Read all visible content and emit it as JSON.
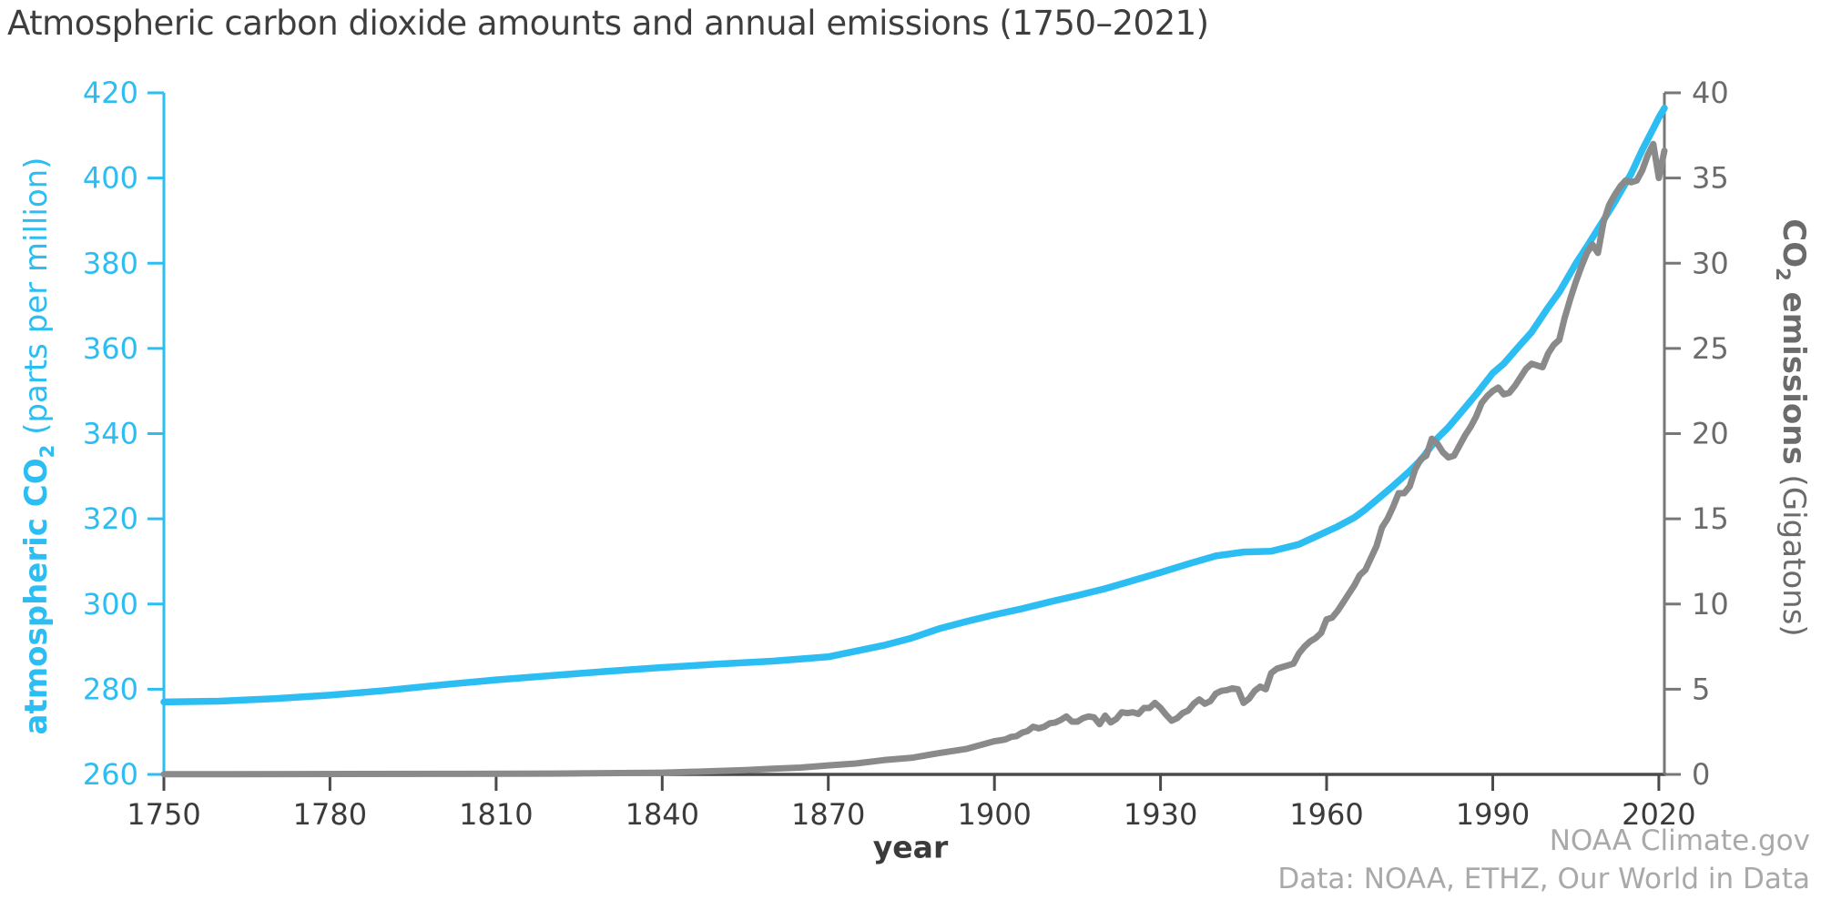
{
  "title": "Atmospheric carbon dioxide amounts and annual emissions (1750–2021)",
  "credits": {
    "line1": "NOAA Climate.gov",
    "line2": "Data: NOAA, ETHZ, Our World in Data"
  },
  "colors": {
    "co2_line": "#2cbdf2",
    "emissions_line": "#8a8a8a",
    "left_axis": "#2cbdf2",
    "left_tick_text": "#2cbdf2",
    "right_axis": "#777777",
    "right_tick_text": "#6b6b6b",
    "x_axis": "#4a4a4a",
    "x_tick_text": "#3b3b3b",
    "title_text": "#3e3e3e",
    "credits_text": "#a9a9a9"
  },
  "axes": {
    "x": {
      "label": "year",
      "ticks": [
        1750,
        1780,
        1810,
        1840,
        1870,
        1900,
        1930,
        1960,
        1990,
        2020
      ]
    },
    "y_left": {
      "label_bold": "atmospheric CO",
      "label_sub": "2",
      "label_rest": " (parts per million)",
      "ticks": [
        260,
        280,
        300,
        320,
        340,
        360,
        380,
        400,
        420
      ]
    },
    "y_right": {
      "label_bold_1": "CO",
      "label_sub": "2",
      "label_bold_2": " emissions",
      "label_rest": " (Gigatons)",
      "ticks": [
        0,
        5,
        10,
        15,
        20,
        25,
        30,
        35,
        40
      ]
    }
  },
  "chart_data": {
    "type": "line",
    "title": "Atmospheric carbon dioxide amounts and annual emissions (1750–2021)",
    "xlabel": "year",
    "ylabel_left": "atmospheric CO2 (parts per million)",
    "ylabel_right": "CO2 emissions (Gigatons)",
    "x_range": [
      1750,
      2021
    ],
    "y_left_range": [
      260,
      420
    ],
    "y_right_range": [
      0,
      40
    ],
    "grid": false,
    "legend": "none",
    "series": [
      {
        "name": "atmospheric CO2",
        "axis": "left",
        "units": "parts per million",
        "color": "#2cbdf2",
        "stroke_width": 7.5,
        "points": [
          [
            1750,
            277.0
          ],
          [
            1760,
            277.2
          ],
          [
            1770,
            277.8
          ],
          [
            1780,
            278.6
          ],
          [
            1790,
            279.7
          ],
          [
            1800,
            281.0
          ],
          [
            1810,
            282.2
          ],
          [
            1820,
            283.2
          ],
          [
            1830,
            284.2
          ],
          [
            1840,
            285.1
          ],
          [
            1850,
            285.9
          ],
          [
            1860,
            286.6
          ],
          [
            1870,
            287.6
          ],
          [
            1880,
            290.3
          ],
          [
            1885,
            292.0
          ],
          [
            1890,
            294.2
          ],
          [
            1895,
            295.9
          ],
          [
            1900,
            297.5
          ],
          [
            1905,
            298.9
          ],
          [
            1910,
            300.5
          ],
          [
            1915,
            302.0
          ],
          [
            1920,
            303.6
          ],
          [
            1925,
            305.5
          ],
          [
            1930,
            307.4
          ],
          [
            1935,
            309.4
          ],
          [
            1940,
            311.3
          ],
          [
            1945,
            312.2
          ],
          [
            1950,
            312.4
          ],
          [
            1955,
            314.0
          ],
          [
            1960,
            317.0
          ],
          [
            1962,
            318.2
          ],
          [
            1965,
            320.3
          ],
          [
            1967,
            322.2
          ],
          [
            1970,
            325.5
          ],
          [
            1972,
            327.7
          ],
          [
            1975,
            331.2
          ],
          [
            1977,
            333.8
          ],
          [
            1980,
            338.9
          ],
          [
            1982,
            341.5
          ],
          [
            1985,
            346.1
          ],
          [
            1987,
            349.2
          ],
          [
            1990,
            354.2
          ],
          [
            1992,
            356.4
          ],
          [
            1995,
            360.9
          ],
          [
            1997,
            363.8
          ],
          [
            2000,
            369.6
          ],
          [
            2002,
            373.2
          ],
          [
            2005,
            379.9
          ],
          [
            2007,
            383.9
          ],
          [
            2010,
            390.1
          ],
          [
            2012,
            394.3
          ],
          [
            2015,
            401.0
          ],
          [
            2017,
            406.6
          ],
          [
            2019,
            411.6
          ],
          [
            2020,
            414.2
          ],
          [
            2021,
            416.4
          ]
        ]
      },
      {
        "name": "CO2 emissions",
        "axis": "right",
        "units": "Gigatons",
        "color": "#8a8a8a",
        "stroke_width": 7,
        "points": [
          [
            1750,
            0.01
          ],
          [
            1775,
            0.02
          ],
          [
            1800,
            0.03
          ],
          [
            1820,
            0.05
          ],
          [
            1840,
            0.1
          ],
          [
            1850,
            0.2
          ],
          [
            1855,
            0.25
          ],
          [
            1860,
            0.33
          ],
          [
            1865,
            0.4
          ],
          [
            1870,
            0.53
          ],
          [
            1875,
            0.64
          ],
          [
            1880,
            0.84
          ],
          [
            1885,
            0.97
          ],
          [
            1890,
            1.25
          ],
          [
            1895,
            1.5
          ],
          [
            1900,
            1.95
          ],
          [
            1901,
            2.0
          ],
          [
            1902,
            2.05
          ],
          [
            1903,
            2.2
          ],
          [
            1904,
            2.25
          ],
          [
            1905,
            2.45
          ],
          [
            1906,
            2.55
          ],
          [
            1907,
            2.8
          ],
          [
            1908,
            2.7
          ],
          [
            1909,
            2.8
          ],
          [
            1910,
            3.0
          ],
          [
            1911,
            3.05
          ],
          [
            1912,
            3.2
          ],
          [
            1913,
            3.4
          ],
          [
            1914,
            3.1
          ],
          [
            1915,
            3.1
          ],
          [
            1916,
            3.3
          ],
          [
            1917,
            3.4
          ],
          [
            1918,
            3.35
          ],
          [
            1919,
            2.95
          ],
          [
            1920,
            3.45
          ],
          [
            1921,
            3.05
          ],
          [
            1922,
            3.25
          ],
          [
            1923,
            3.65
          ],
          [
            1924,
            3.6
          ],
          [
            1925,
            3.65
          ],
          [
            1926,
            3.55
          ],
          [
            1927,
            3.9
          ],
          [
            1928,
            3.9
          ],
          [
            1929,
            4.2
          ],
          [
            1930,
            3.9
          ],
          [
            1931,
            3.5
          ],
          [
            1932,
            3.15
          ],
          [
            1933,
            3.3
          ],
          [
            1934,
            3.6
          ],
          [
            1935,
            3.75
          ],
          [
            1936,
            4.15
          ],
          [
            1937,
            4.4
          ],
          [
            1938,
            4.15
          ],
          [
            1939,
            4.3
          ],
          [
            1940,
            4.75
          ],
          [
            1941,
            4.9
          ],
          [
            1942,
            4.95
          ],
          [
            1943,
            5.05
          ],
          [
            1944,
            5.0
          ],
          [
            1945,
            4.2
          ],
          [
            1946,
            4.45
          ],
          [
            1947,
            4.9
          ],
          [
            1948,
            5.15
          ],
          [
            1949,
            5.0
          ],
          [
            1950,
            5.95
          ],
          [
            1951,
            6.2
          ],
          [
            1952,
            6.3
          ],
          [
            1953,
            6.4
          ],
          [
            1954,
            6.5
          ],
          [
            1955,
            7.1
          ],
          [
            1956,
            7.5
          ],
          [
            1957,
            7.8
          ],
          [
            1958,
            8.0
          ],
          [
            1959,
            8.3
          ],
          [
            1960,
            9.1
          ],
          [
            1961,
            9.2
          ],
          [
            1962,
            9.6
          ],
          [
            1963,
            10.1
          ],
          [
            1964,
            10.6
          ],
          [
            1965,
            11.1
          ],
          [
            1966,
            11.7
          ],
          [
            1967,
            12.0
          ],
          [
            1968,
            12.7
          ],
          [
            1969,
            13.4
          ],
          [
            1970,
            14.5
          ],
          [
            1971,
            15.0
          ],
          [
            1972,
            15.7
          ],
          [
            1973,
            16.5
          ],
          [
            1974,
            16.5
          ],
          [
            1975,
            16.9
          ],
          [
            1976,
            17.9
          ],
          [
            1977,
            18.5
          ],
          [
            1978,
            18.7
          ],
          [
            1979,
            19.7
          ],
          [
            1980,
            19.4
          ],
          [
            1981,
            18.9
          ],
          [
            1982,
            18.6
          ],
          [
            1983,
            18.7
          ],
          [
            1984,
            19.3
          ],
          [
            1985,
            19.9
          ],
          [
            1986,
            20.4
          ],
          [
            1987,
            21.0
          ],
          [
            1988,
            21.8
          ],
          [
            1989,
            22.2
          ],
          [
            1990,
            22.5
          ],
          [
            1991,
            22.7
          ],
          [
            1992,
            22.3
          ],
          [
            1993,
            22.4
          ],
          [
            1994,
            22.8
          ],
          [
            1995,
            23.3
          ],
          [
            1996,
            23.8
          ],
          [
            1997,
            24.1
          ],
          [
            1998,
            24.0
          ],
          [
            1999,
            23.9
          ],
          [
            2000,
            24.7
          ],
          [
            2001,
            25.2
          ],
          [
            2002,
            25.5
          ],
          [
            2003,
            26.8
          ],
          [
            2004,
            27.9
          ],
          [
            2005,
            28.9
          ],
          [
            2006,
            29.8
          ],
          [
            2007,
            30.6
          ],
          [
            2008,
            31.1
          ],
          [
            2009,
            30.6
          ],
          [
            2010,
            32.4
          ],
          [
            2011,
            33.4
          ],
          [
            2012,
            34.0
          ],
          [
            2013,
            34.5
          ],
          [
            2014,
            34.85
          ],
          [
            2015,
            34.75
          ],
          [
            2016,
            34.85
          ],
          [
            2017,
            35.45
          ],
          [
            2018,
            36.35
          ],
          [
            2019,
            37.0
          ],
          [
            2020,
            35.0
          ],
          [
            2021,
            36.6
          ]
        ]
      }
    ]
  }
}
